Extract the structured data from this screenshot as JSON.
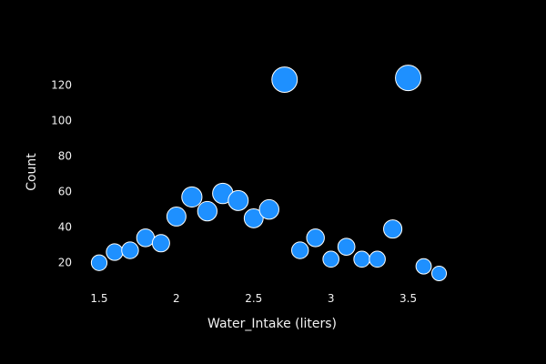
{
  "chart_data": {
    "type": "scatter",
    "title": "",
    "xlabel": "Water_Intake (liters)",
    "ylabel": "Count",
    "xlim": [
      1.4,
      3.85
    ],
    "ylim": [
      4,
      133
    ],
    "grid": false,
    "legend": "none",
    "colors": {
      "background": "#000000",
      "marker_fill": "#1e90ff",
      "marker_stroke": "#ffffff",
      "text": "#f2f2f2"
    },
    "x_ticks": [
      {
        "value": 1.5,
        "label": "1.5"
      },
      {
        "value": 2,
        "label": "2"
      },
      {
        "value": 2.5,
        "label": "2.5"
      },
      {
        "value": 3,
        "label": "3"
      },
      {
        "value": 3.5,
        "label": "3.5"
      }
    ],
    "y_ticks": [
      {
        "value": 20,
        "label": "20"
      },
      {
        "value": 40,
        "label": "40"
      },
      {
        "value": 60,
        "label": "60"
      },
      {
        "value": 80,
        "label": "80"
      },
      {
        "value": 100,
        "label": "100"
      },
      {
        "value": 120,
        "label": "120"
      }
    ],
    "size_encoding": "count",
    "points": [
      {
        "x": 1.5,
        "y": 20
      },
      {
        "x": 1.6,
        "y": 26
      },
      {
        "x": 1.7,
        "y": 27
      },
      {
        "x": 1.8,
        "y": 34
      },
      {
        "x": 1.9,
        "y": 31
      },
      {
        "x": 2.0,
        "y": 46
      },
      {
        "x": 2.1,
        "y": 57
      },
      {
        "x": 2.2,
        "y": 49
      },
      {
        "x": 2.3,
        "y": 59
      },
      {
        "x": 2.4,
        "y": 55
      },
      {
        "x": 2.5,
        "y": 45
      },
      {
        "x": 2.6,
        "y": 50
      },
      {
        "x": 2.7,
        "y": 123
      },
      {
        "x": 2.8,
        "y": 27
      },
      {
        "x": 2.9,
        "y": 34
      },
      {
        "x": 3.0,
        "y": 22
      },
      {
        "x": 3.1,
        "y": 29
      },
      {
        "x": 3.2,
        "y": 22
      },
      {
        "x": 3.3,
        "y": 22
      },
      {
        "x": 3.4,
        "y": 39
      },
      {
        "x": 3.5,
        "y": 124
      },
      {
        "x": 3.6,
        "y": 18
      },
      {
        "x": 3.7,
        "y": 14
      }
    ]
  }
}
